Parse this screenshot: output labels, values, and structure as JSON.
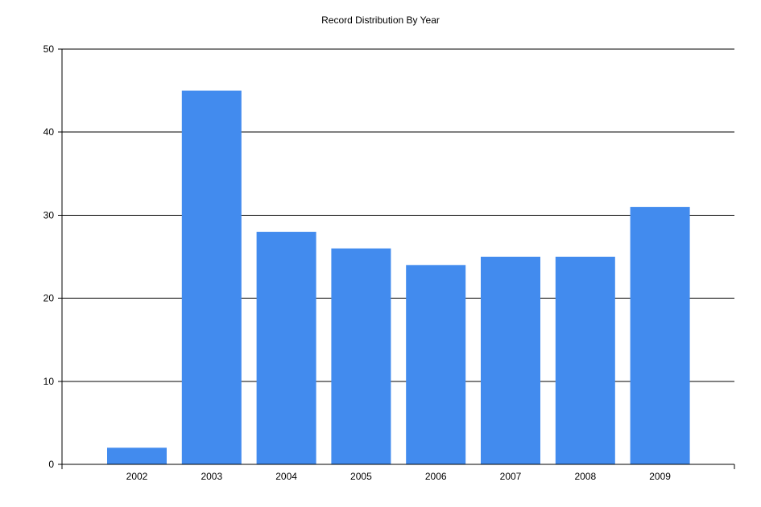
{
  "chart_data": {
    "type": "bar",
    "title": "Record Distribution By Year",
    "xlabel": "",
    "ylabel": "",
    "categories": [
      "2002",
      "2003",
      "2004",
      "2005",
      "2006",
      "2007",
      "2008",
      "2009"
    ],
    "values": [
      2,
      45,
      28,
      26,
      24,
      25,
      25,
      31
    ],
    "ylim": [
      0,
      50
    ],
    "yticks": [
      0,
      10,
      20,
      30,
      40,
      50
    ],
    "grid": true,
    "legend": "none",
    "colors": {
      "bar": "#428bee",
      "grid": "#000000",
      "axis": "#000000"
    }
  }
}
